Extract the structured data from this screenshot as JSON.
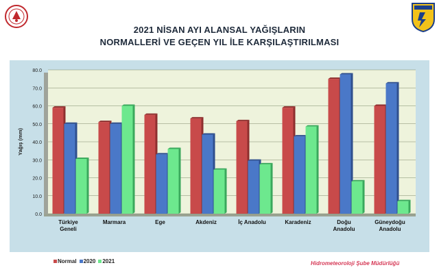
{
  "colors": {
    "normal": "#c84a4a",
    "y2020": "#4a78c8",
    "y2021": "#6de88e",
    "plot_bg": "#eef3dc",
    "outer_bg": "#c7dfe8",
    "footer": "#d63a57"
  },
  "header": {
    "title_line1": "2021 NİSAN AYI ALANSAL YAĞIŞLARIN",
    "title_line2": "NORMALLERİ VE GEÇEN YIL İLE KARŞILAŞTIRILMASI",
    "left_logo_icon": "ministry-emblem-icon",
    "right_logo_icon": "meteoroloji-shield-icon"
  },
  "footer": {
    "credit": "Hidrometeoroloji Şube Müdürlüğü"
  },
  "chart_data": {
    "type": "bar",
    "title": "2021 NİSAN AYI ALANSAL YAĞIŞLARIN NORMALLERİ VE GEÇEN YIL İLE KARŞILAŞTIRILMASI",
    "xlabel": "",
    "ylabel": "Yağış (mm)",
    "ylim": [
      0,
      80
    ],
    "yticks": [
      "0.0",
      "10.0",
      "20.0",
      "30.0",
      "40.0",
      "50.0",
      "60.0",
      "70.0",
      "80.0"
    ],
    "grid": true,
    "legend_position": "bottom-left",
    "categories": [
      [
        "Türkiye",
        "Geneli"
      ],
      [
        "Marmara"
      ],
      [
        "Ege"
      ],
      [
        "Akdeniz"
      ],
      [
        "İç Anadolu"
      ],
      [
        "Karadeniz"
      ],
      [
        "Doğu",
        "Anadolu"
      ],
      [
        "Güneydoğu",
        "Anadolu"
      ]
    ],
    "series": [
      {
        "name": "Normal",
        "values": [
          59,
          51,
          55,
          53,
          51.5,
          59,
          75,
          60
        ]
      },
      {
        "name": "2020",
        "values": [
          50,
          50,
          33,
          44,
          29.5,
          43,
          77.5,
          72.5
        ]
      },
      {
        "name": "2021",
        "values": [
          30.5,
          60,
          36,
          24.5,
          27.5,
          48.5,
          18,
          7
        ]
      }
    ]
  }
}
